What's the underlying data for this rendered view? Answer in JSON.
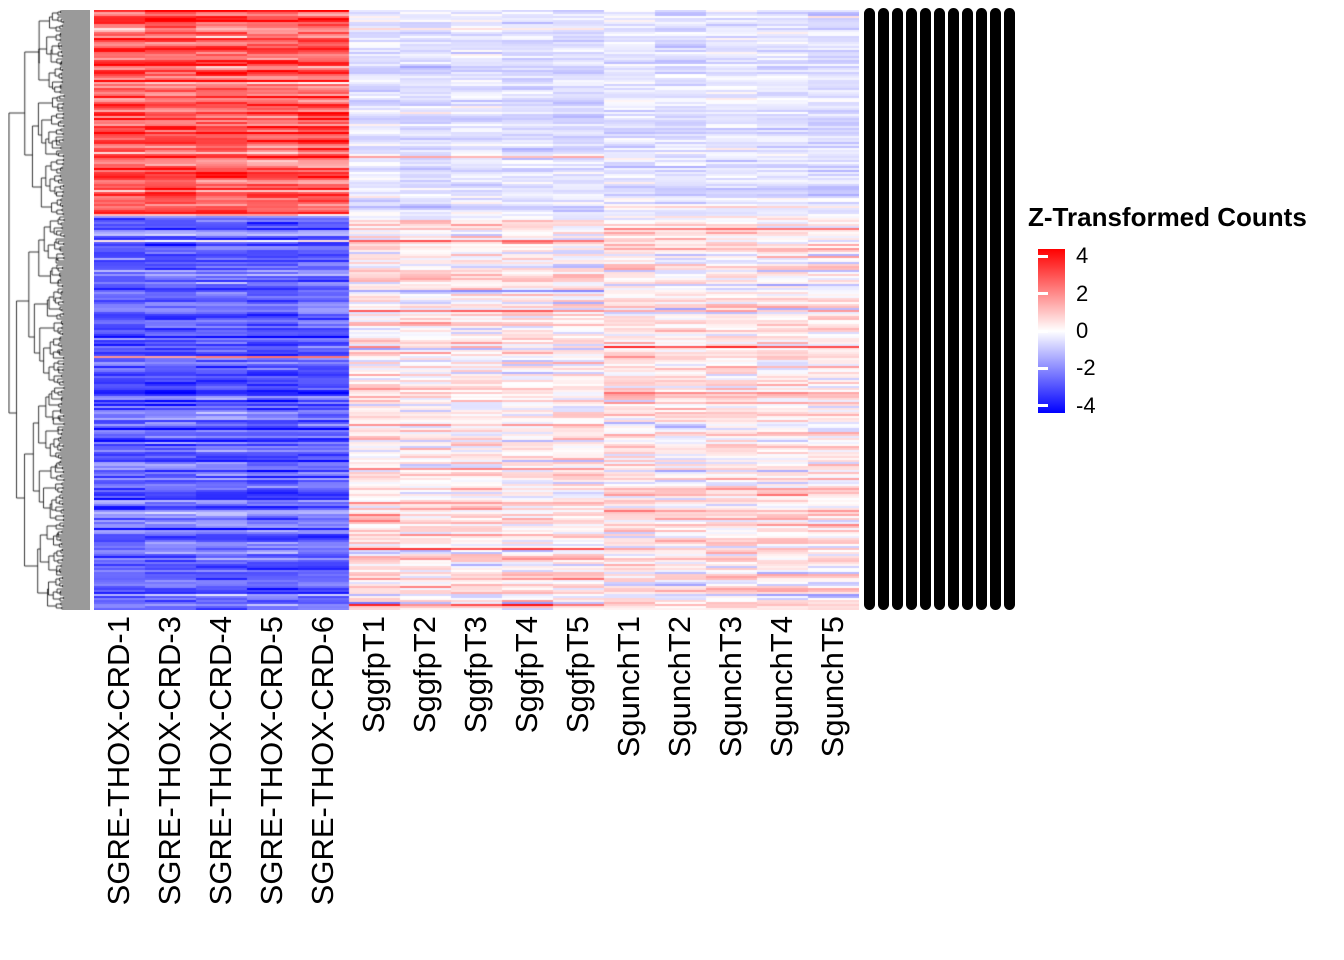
{
  "chart_data": {
    "type": "heatmap",
    "legend_title": "Z-Transformed Counts",
    "legend_ticks": [
      {
        "label": "4",
        "value": 4
      },
      {
        "label": "2",
        "value": 2
      },
      {
        "label": "0",
        "value": 0
      },
      {
        "label": "-2",
        "value": -2
      },
      {
        "label": "-4",
        "value": -4
      }
    ],
    "columns": [
      "SGRE-THOX-CRD-1",
      "SGRE-THOX-CRD-3",
      "SGRE-THOX-CRD-4",
      "SGRE-THOX-CRD-5",
      "SGRE-THOX-CRD-6",
      "SggfpT1",
      "SggfpT2",
      "SggfpT3",
      "SggfpT4",
      "SggfpT5",
      "SgunchT1",
      "SgunchT2",
      "SgunchT3",
      "SgunchT4",
      "SgunchT5"
    ],
    "column_groups": [
      {
        "name": "SGRE-THOX-CRD",
        "col_range": [
          0,
          5
        ]
      },
      {
        "name": "Sggfp",
        "col_range": [
          5,
          10
        ]
      },
      {
        "name": "Sgunch",
        "col_range": [
          10,
          15
        ]
      }
    ],
    "zlim": [
      -4,
      4
    ],
    "colorscale": {
      "low": "#0000FF",
      "mid": "#FFFFFF",
      "high": "#FF0000"
    },
    "colors": {
      "dendrogram": "#000000",
      "labels": "#000000",
      "background": "#FFFFFF"
    },
    "row_dendrogram": true,
    "row_labels_overplotted": true,
    "row_label_stripes": 11,
    "n_rows": 300,
    "row_split": 0.345,
    "blocks": [
      {
        "region": "top-left",
        "col_range": [
          0,
          5
        ],
        "mean": 2.7,
        "row_sd": 0.85,
        "cell_sd": 0.45
      },
      {
        "region": "bottom-left",
        "col_range": [
          0,
          5
        ],
        "mean": -2.35,
        "row_sd": 0.6,
        "cell_sd": 0.35
      },
      {
        "region": "top-right",
        "col_range": [
          5,
          15
        ],
        "mean": -0.45,
        "row_sd": 0.22,
        "cell_sd": 0.22
      },
      {
        "region": "bottom-right",
        "col_range": [
          5,
          15
        ],
        "mean": 0.3,
        "row_sd": 0.5,
        "cell_sd": 0.4
      }
    ],
    "hot_rows": {
      "top_right_prob": 0.03,
      "bottom_right_prob": 0.07,
      "bottom_left_prob": 0.02,
      "boost": [
        1.2,
        2.6
      ]
    },
    "seed": 11
  }
}
